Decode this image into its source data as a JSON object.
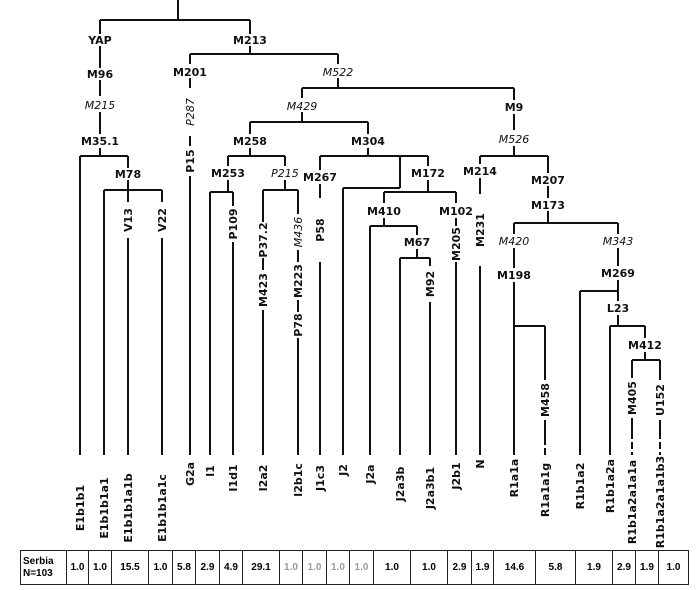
{
  "markers": {
    "YAP": "YAP",
    "M213": "M213",
    "M96": "M96",
    "M215": "M215",
    "M35_1": "M35.1",
    "M78": "M78",
    "V13": "V13",
    "V22": "V22",
    "M201": "M201",
    "P287": "P287",
    "P15": "P15",
    "M522": "M522",
    "M429": "M429",
    "M258": "M258",
    "M253": "M253",
    "P109": "P109",
    "P215": "P215",
    "P37_2": "P37.2",
    "M436": "M436",
    "M423": "M423",
    "M223": "M223",
    "P78": "P78",
    "M304": "M304",
    "M267": "M267",
    "P58": "P58",
    "M172": "M172",
    "M410": "M410",
    "M67": "M67",
    "M92": "M92",
    "M102": "M102",
    "M205": "M205",
    "M9": "M9",
    "M526": "M526",
    "M214": "M214",
    "M231": "M231",
    "M207": "M207",
    "M173": "M173",
    "M420": "M420",
    "M343": "M343",
    "M198": "M198",
    "M458": "M458",
    "M269": "M269",
    "L23": "L23",
    "M412": "M412",
    "M405": "M405",
    "U152": "U152"
  },
  "haplogroups": [
    "E1b1b1",
    "E1b1b1a1",
    "E1b1b1a1b",
    "E1b1b1a1c",
    "G2a",
    "I1",
    "I1d1",
    "I2a2",
    "I2b1c",
    "J1c3",
    "J2",
    "J2a",
    "J2a3b",
    "J2a3b1",
    "J2b1",
    "N",
    "R1a1a",
    "R1a1a1g",
    "R1b1a2",
    "R1b1a2a",
    "R1b1a2a1a1a",
    "R1b1a2a1a1b3"
  ],
  "population": {
    "name": "Serbia",
    "n": "N=103"
  },
  "frequencies": [
    "1.0",
    "1.0",
    "15.5",
    "1.0",
    "5.8",
    "2.9",
    "4.9",
    "29.1",
    "1.0",
    "1.0",
    "1.0",
    "1.0",
    "1.0",
    "1.0",
    "2.9",
    "1.9",
    "14.6",
    "5.8",
    "1.9",
    "2.9",
    "1.9",
    "1.0"
  ],
  "grey_frequency_columns": [
    8,
    9,
    10,
    11
  ]
}
